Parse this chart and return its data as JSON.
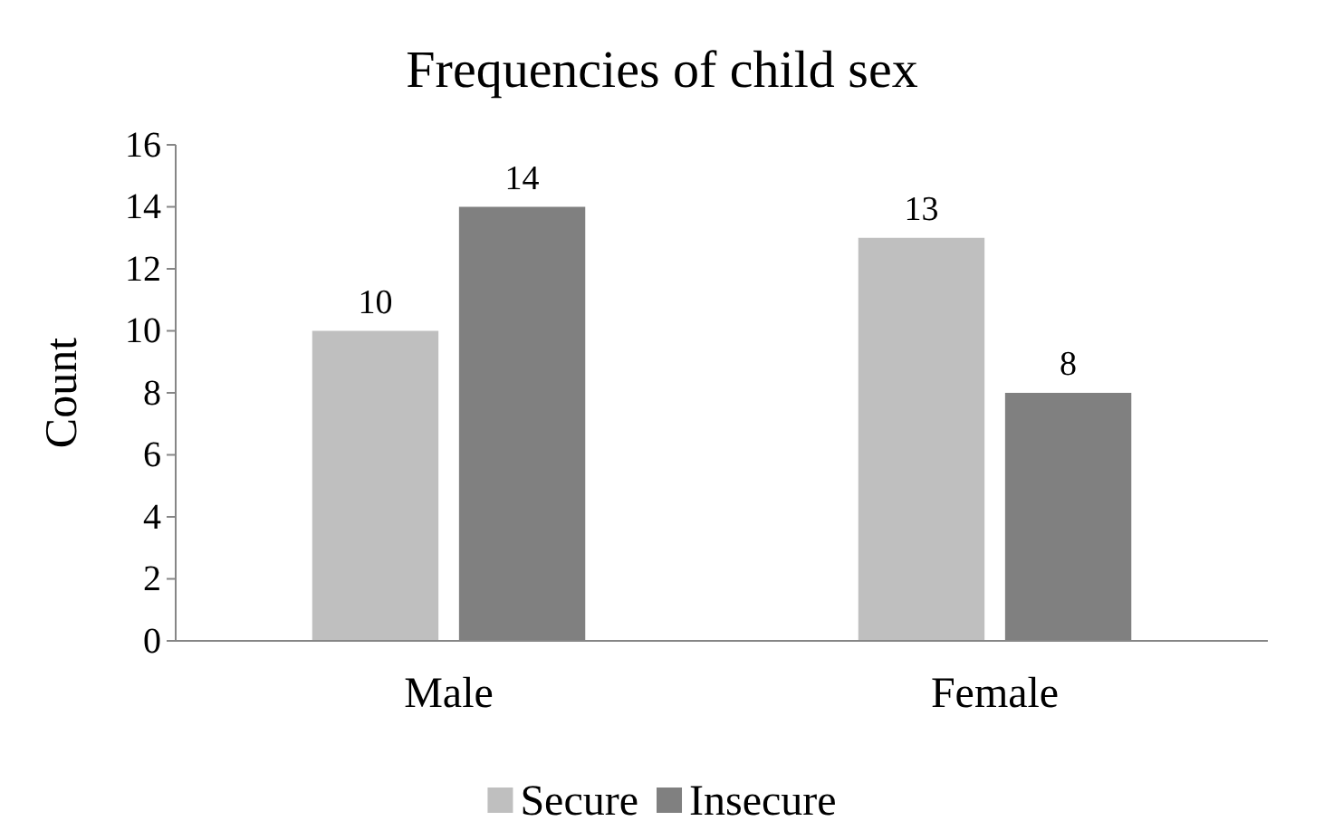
{
  "chart_data": {
    "type": "bar",
    "title": "Frequencies of child sex",
    "ylabel": "Count",
    "categories": [
      "Male",
      "Female"
    ],
    "series": [
      {
        "name": "Secure",
        "color": "#bfbfbf",
        "values": [
          10,
          13
        ]
      },
      {
        "name": "Insecure",
        "color": "#808080",
        "values": [
          14,
          8
        ]
      }
    ],
    "ylim": [
      0,
      16
    ],
    "yticks": [
      0,
      2,
      4,
      6,
      8,
      10,
      12,
      14,
      16
    ],
    "grid": false,
    "legend": "bottom",
    "data_labels": true
  }
}
